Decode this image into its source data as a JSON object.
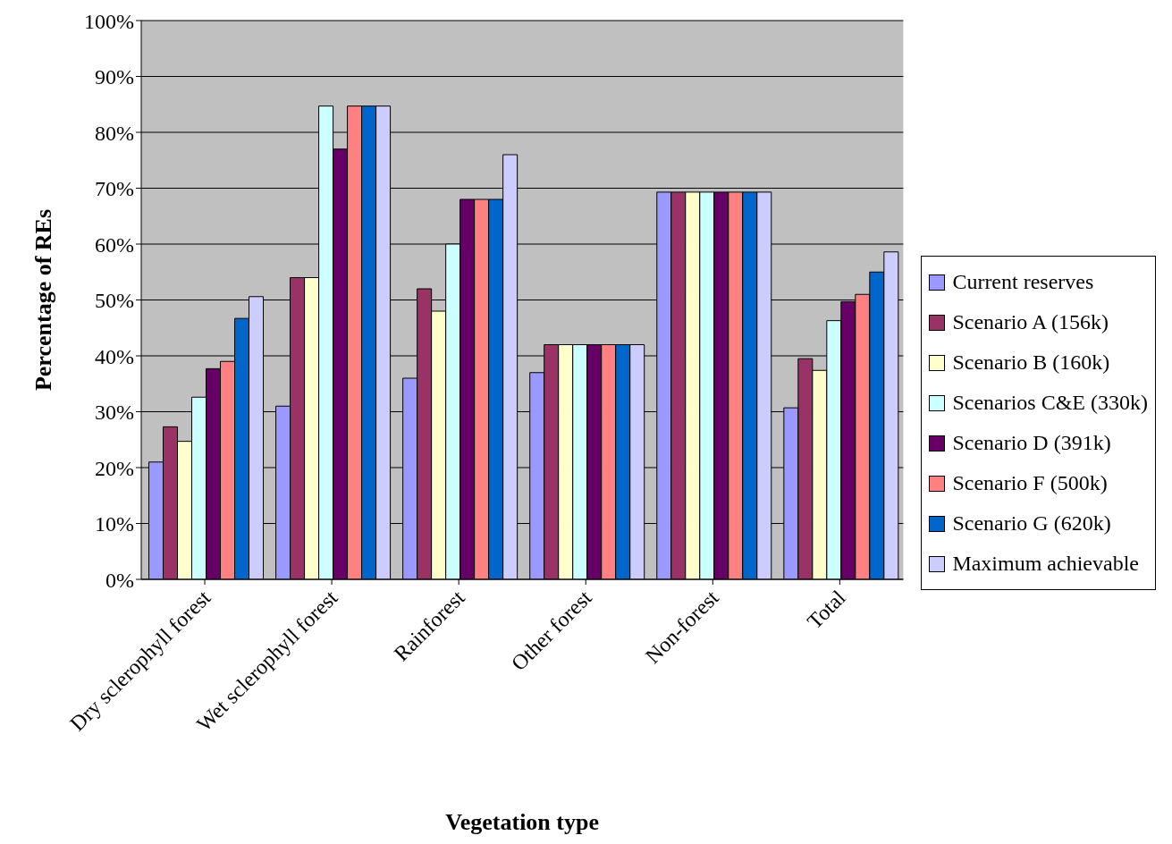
{
  "chart_data": {
    "type": "bar",
    "xlabel": "Vegetation type",
    "ylabel": "Percentage of REs",
    "categories": [
      "Dry sclerophyll forest",
      "Wet sclerophyll forest",
      "Rainforest",
      "Other forest",
      "Non-forest",
      "Total"
    ],
    "series": [
      {
        "name": "Current reserves",
        "color": "#9999ff",
        "values": [
          21,
          31,
          36,
          37,
          69.3,
          30.7
        ]
      },
      {
        "name": "Scenario A (156k)",
        "color": "#993366",
        "values": [
          27.3,
          54,
          52,
          42,
          69.3,
          39.5
        ]
      },
      {
        "name": "Scenario B (160k)",
        "color": "#ffffcc",
        "values": [
          24.7,
          54,
          48,
          42,
          69.3,
          37.4
        ]
      },
      {
        "name": "Scenarios C&E (330k)",
        "color": "#ccffff",
        "values": [
          32.6,
          84.7,
          60,
          42,
          69.3,
          46.3
        ]
      },
      {
        "name": "Scenario D (391k)",
        "color": "#660066",
        "values": [
          37.7,
          77,
          68,
          42,
          69.3,
          49.7
        ]
      },
      {
        "name": "Scenario F (500k)",
        "color": "#ff8080",
        "values": [
          39,
          84.7,
          68,
          42,
          69.3,
          51
        ]
      },
      {
        "name": "Scenario G (620k)",
        "color": "#0066cc",
        "values": [
          46.7,
          84.7,
          68,
          42,
          69.3,
          55
        ]
      },
      {
        "name": "Maximum achievable",
        "color": "#ccccff",
        "values": [
          50.6,
          84.7,
          76,
          42,
          69.3,
          58.6
        ]
      }
    ],
    "ylim": [
      0,
      100
    ],
    "yticks": [
      {
        "value": 0,
        "label": "0%"
      },
      {
        "value": 10,
        "label": "10%"
      },
      {
        "value": 20,
        "label": "20%"
      },
      {
        "value": 30,
        "label": "30%"
      },
      {
        "value": 40,
        "label": "40%"
      },
      {
        "value": 50,
        "label": "50%"
      },
      {
        "value": 60,
        "label": "60%"
      },
      {
        "value": 70,
        "label": "70%"
      },
      {
        "value": 80,
        "label": "80%"
      },
      {
        "value": 90,
        "label": "90%"
      },
      {
        "value": 100,
        "label": "100%"
      }
    ],
    "grid": "y",
    "legend": "right"
  }
}
